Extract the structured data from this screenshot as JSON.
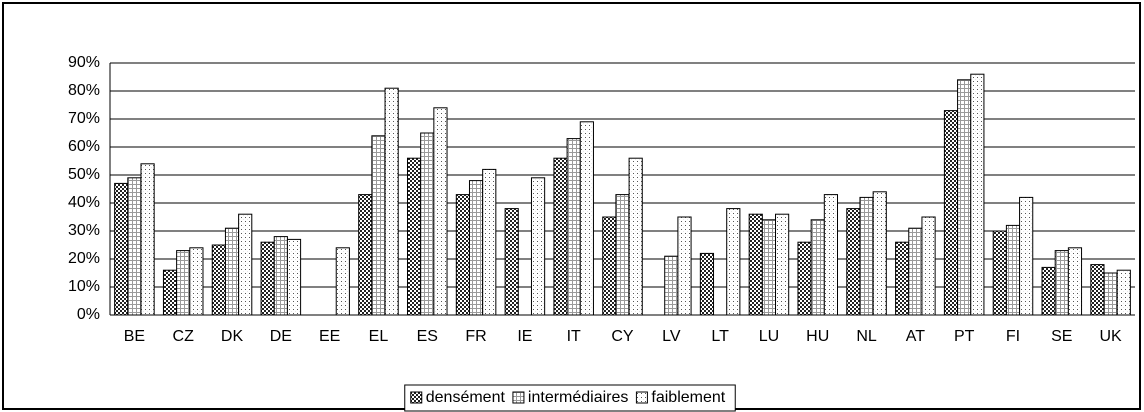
{
  "chart_data": {
    "type": "bar",
    "categories": [
      "BE",
      "CZ",
      "DK",
      "DE",
      "EE",
      "EL",
      "ES",
      "FR",
      "IE",
      "IT",
      "CY",
      "LV",
      "LT",
      "LU",
      "HU",
      "NL",
      "AT",
      "PT",
      "FI",
      "SE",
      "UK"
    ],
    "series": [
      {
        "name": "densément",
        "color": "#222222",
        "values": [
          47,
          16,
          25,
          26,
          null,
          43,
          56,
          43,
          38,
          56,
          35,
          null,
          22,
          36,
          26,
          38,
          26,
          73,
          30,
          17,
          18
        ]
      },
      {
        "name": "intermédiaires",
        "color": "#9a9a9a",
        "values": [
          49,
          23,
          31,
          28,
          null,
          64,
          65,
          48,
          null,
          63,
          43,
          21,
          null,
          34,
          34,
          42,
          31,
          84,
          32,
          23,
          15
        ]
      },
      {
        "name": "faiblement",
        "color": "#e8e8e8",
        "values": [
          54,
          24,
          36,
          27,
          24,
          81,
          74,
          52,
          49,
          69,
          56,
          35,
          38,
          36,
          43,
          44,
          35,
          86,
          42,
          24,
          16
        ]
      }
    ],
    "ylim": [
      0,
      90
    ],
    "yticks": [
      {
        "value": 0,
        "label": "0%"
      },
      {
        "value": 10,
        "label": "10%"
      },
      {
        "value": 20,
        "label": "20%"
      },
      {
        "value": 30,
        "label": "30%"
      },
      {
        "value": 40,
        "label": "40%"
      },
      {
        "value": 50,
        "label": "50%"
      },
      {
        "value": 60,
        "label": "60%"
      },
      {
        "value": 70,
        "label": "70%"
      },
      {
        "value": 80,
        "label": "80%"
      },
      {
        "value": 90,
        "label": "90%"
      }
    ],
    "grid": true,
    "legend": "bottom"
  }
}
